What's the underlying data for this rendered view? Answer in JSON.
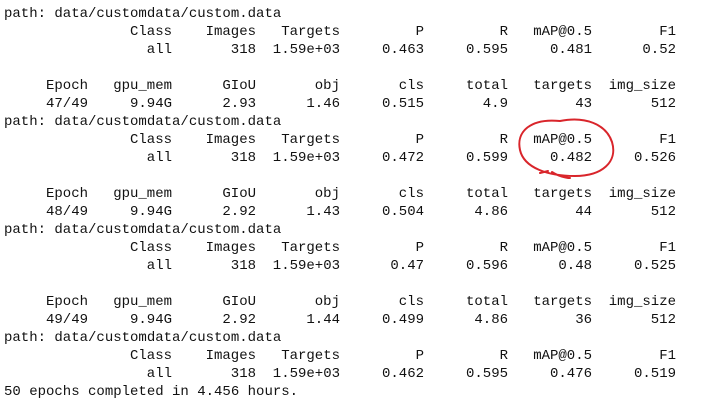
{
  "first_eval": {
    "path": "path: data/customdata/custom.data",
    "header": [
      "Class",
      "Images",
      "Targets",
      "P",
      "R",
      "mAP@0.5",
      "F1"
    ],
    "row": [
      "all",
      "318",
      "1.59e+03",
      "0.463",
      "0.595",
      "0.481",
      "0.52"
    ]
  },
  "epochs": [
    {
      "header": [
        "Epoch",
        "gpu_mem",
        "GIoU",
        "obj",
        "cls",
        "total",
        "targets",
        "img_size"
      ],
      "values": [
        "47/49",
        "9.94G",
        "2.93",
        "1.46",
        "0.515",
        "4.9",
        "43",
        "512"
      ],
      "path": "path: data/customdata/custom.data",
      "eval_header": [
        "Class",
        "Images",
        "Targets",
        "P",
        "R",
        "mAP@0.5",
        "F1"
      ],
      "eval_row": [
        "all",
        "318",
        "1.59e+03",
        "0.472",
        "0.599",
        "0.482",
        "0.526"
      ]
    },
    {
      "header": [
        "Epoch",
        "gpu_mem",
        "GIoU",
        "obj",
        "cls",
        "total",
        "targets",
        "img_size"
      ],
      "values": [
        "48/49",
        "9.94G",
        "2.92",
        "1.43",
        "0.504",
        "4.86",
        "44",
        "512"
      ],
      "path": "path: data/customdata/custom.data",
      "eval_header": [
        "Class",
        "Images",
        "Targets",
        "P",
        "R",
        "mAP@0.5",
        "F1"
      ],
      "eval_row": [
        "all",
        "318",
        "1.59e+03",
        "0.47",
        "0.596",
        "0.48",
        "0.525"
      ]
    },
    {
      "header": [
        "Epoch",
        "gpu_mem",
        "GIoU",
        "obj",
        "cls",
        "total",
        "targets",
        "img_size"
      ],
      "values": [
        "49/49",
        "9.94G",
        "2.92",
        "1.44",
        "0.499",
        "4.86",
        "36",
        "512"
      ],
      "path": "path: data/customdata/custom.data",
      "eval_header": [
        "Class",
        "Images",
        "Targets",
        "P",
        "R",
        "mAP@0.5",
        "F1"
      ],
      "eval_row": [
        "all",
        "318",
        "1.59e+03",
        "0.462",
        "0.595",
        "0.476",
        "0.519"
      ]
    }
  ],
  "footer": "50 epochs completed in 4.456 hours."
}
